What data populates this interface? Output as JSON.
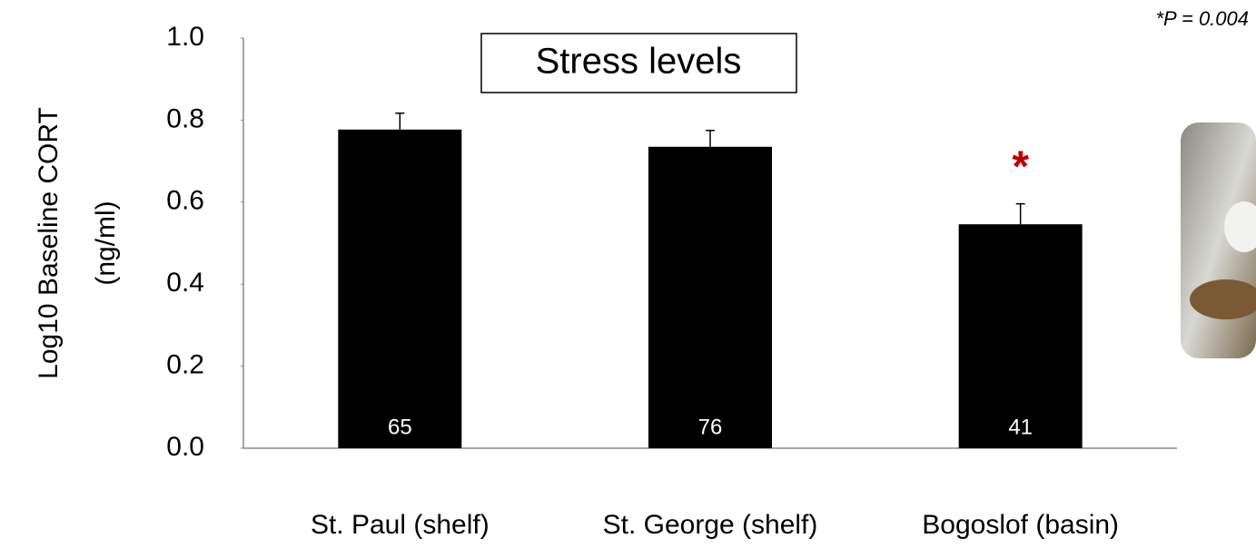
{
  "chart_data": {
    "type": "bar",
    "title": "Stress levels",
    "y_label": [
      "Log10 Baseline CORT",
      "(ng/ml)"
    ],
    "categories": [
      "St. Paul (shelf)",
      "St. George (shelf)",
      "Bogoslof (basin)"
    ],
    "values": [
      0.777,
      0.735,
      0.546
    ],
    "errors": [
      0.04,
      0.04,
      0.05
    ],
    "sample_sizes": [
      65,
      76,
      41
    ],
    "significance": {
      "category": 2,
      "marker": "*",
      "color": "#c00000"
    },
    "annotation": "*P = 0.004",
    "color": "#000000",
    "ylim": [
      0,
      1
    ],
    "yticks": [
      {
        "value": 0,
        "label": "0.0"
      },
      {
        "value": 0.2,
        "label": "0.2"
      },
      {
        "value": 0.4,
        "label": "0.4"
      },
      {
        "value": 0.6,
        "label": "0.6"
      },
      {
        "value": 0.8,
        "label": "0.8"
      },
      {
        "value": 1,
        "label": "1.0"
      }
    ],
    "grid": false
  }
}
